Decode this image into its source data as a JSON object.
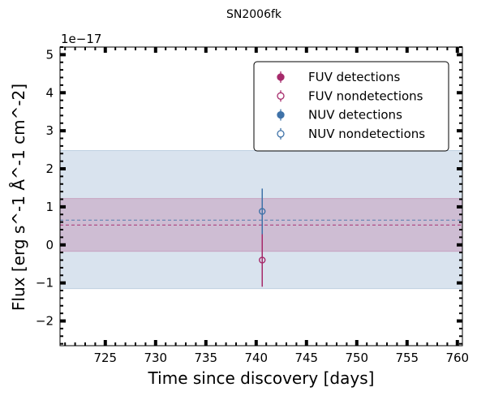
{
  "chart_data": {
    "type": "scatter",
    "title": "SN2006fk",
    "xlabel": "Time since discovery [days]",
    "ylabel": "Flux [erg s^-1 Å^-1 cm^-2]",
    "y_offset_text": "1e−17",
    "xlim": [
      720.5,
      760.5
    ],
    "ylim": [
      -2.65,
      5.2
    ],
    "y_scale_factor": 1e-17,
    "x_ticks": [
      725,
      730,
      735,
      740,
      745,
      750,
      755,
      760
    ],
    "y_ticks": [
      -2,
      -1,
      0,
      1,
      2,
      3,
      4,
      5
    ],
    "x_tick_labels": [
      "725",
      "730",
      "735",
      "740",
      "745",
      "750",
      "755",
      "760"
    ],
    "y_tick_labels": [
      "−2",
      "−1",
      "0",
      "1",
      "2",
      "3",
      "4",
      "5"
    ],
    "grid": false,
    "legend_position": "top-right",
    "series": [
      {
        "name": "FUV detections",
        "color": "#a62a6b",
        "marker": "filled-circle",
        "points": []
      },
      {
        "name": "FUV nondetections",
        "color": "#a62a6b",
        "marker": "open-circle",
        "points": [
          {
            "x": 740.6,
            "y": -0.4,
            "yerr": 0.7
          }
        ]
      },
      {
        "name": "NUV detections",
        "color": "#3f72a8",
        "marker": "filled-circle",
        "points": []
      },
      {
        "name": "NUV nondetections",
        "color": "#3f72a8",
        "marker": "open-circle",
        "points": [
          {
            "x": 740.6,
            "y": 0.88,
            "yerr": 0.6
          }
        ]
      }
    ],
    "bands": [
      {
        "series": "NUV",
        "color": "#3f72a8",
        "y_low": -1.15,
        "y_high": 2.48,
        "mean": 0.65
      },
      {
        "series": "FUV",
        "color": "#a62a6b",
        "y_low": -0.17,
        "y_high": 1.22,
        "mean": 0.52
      }
    ]
  }
}
